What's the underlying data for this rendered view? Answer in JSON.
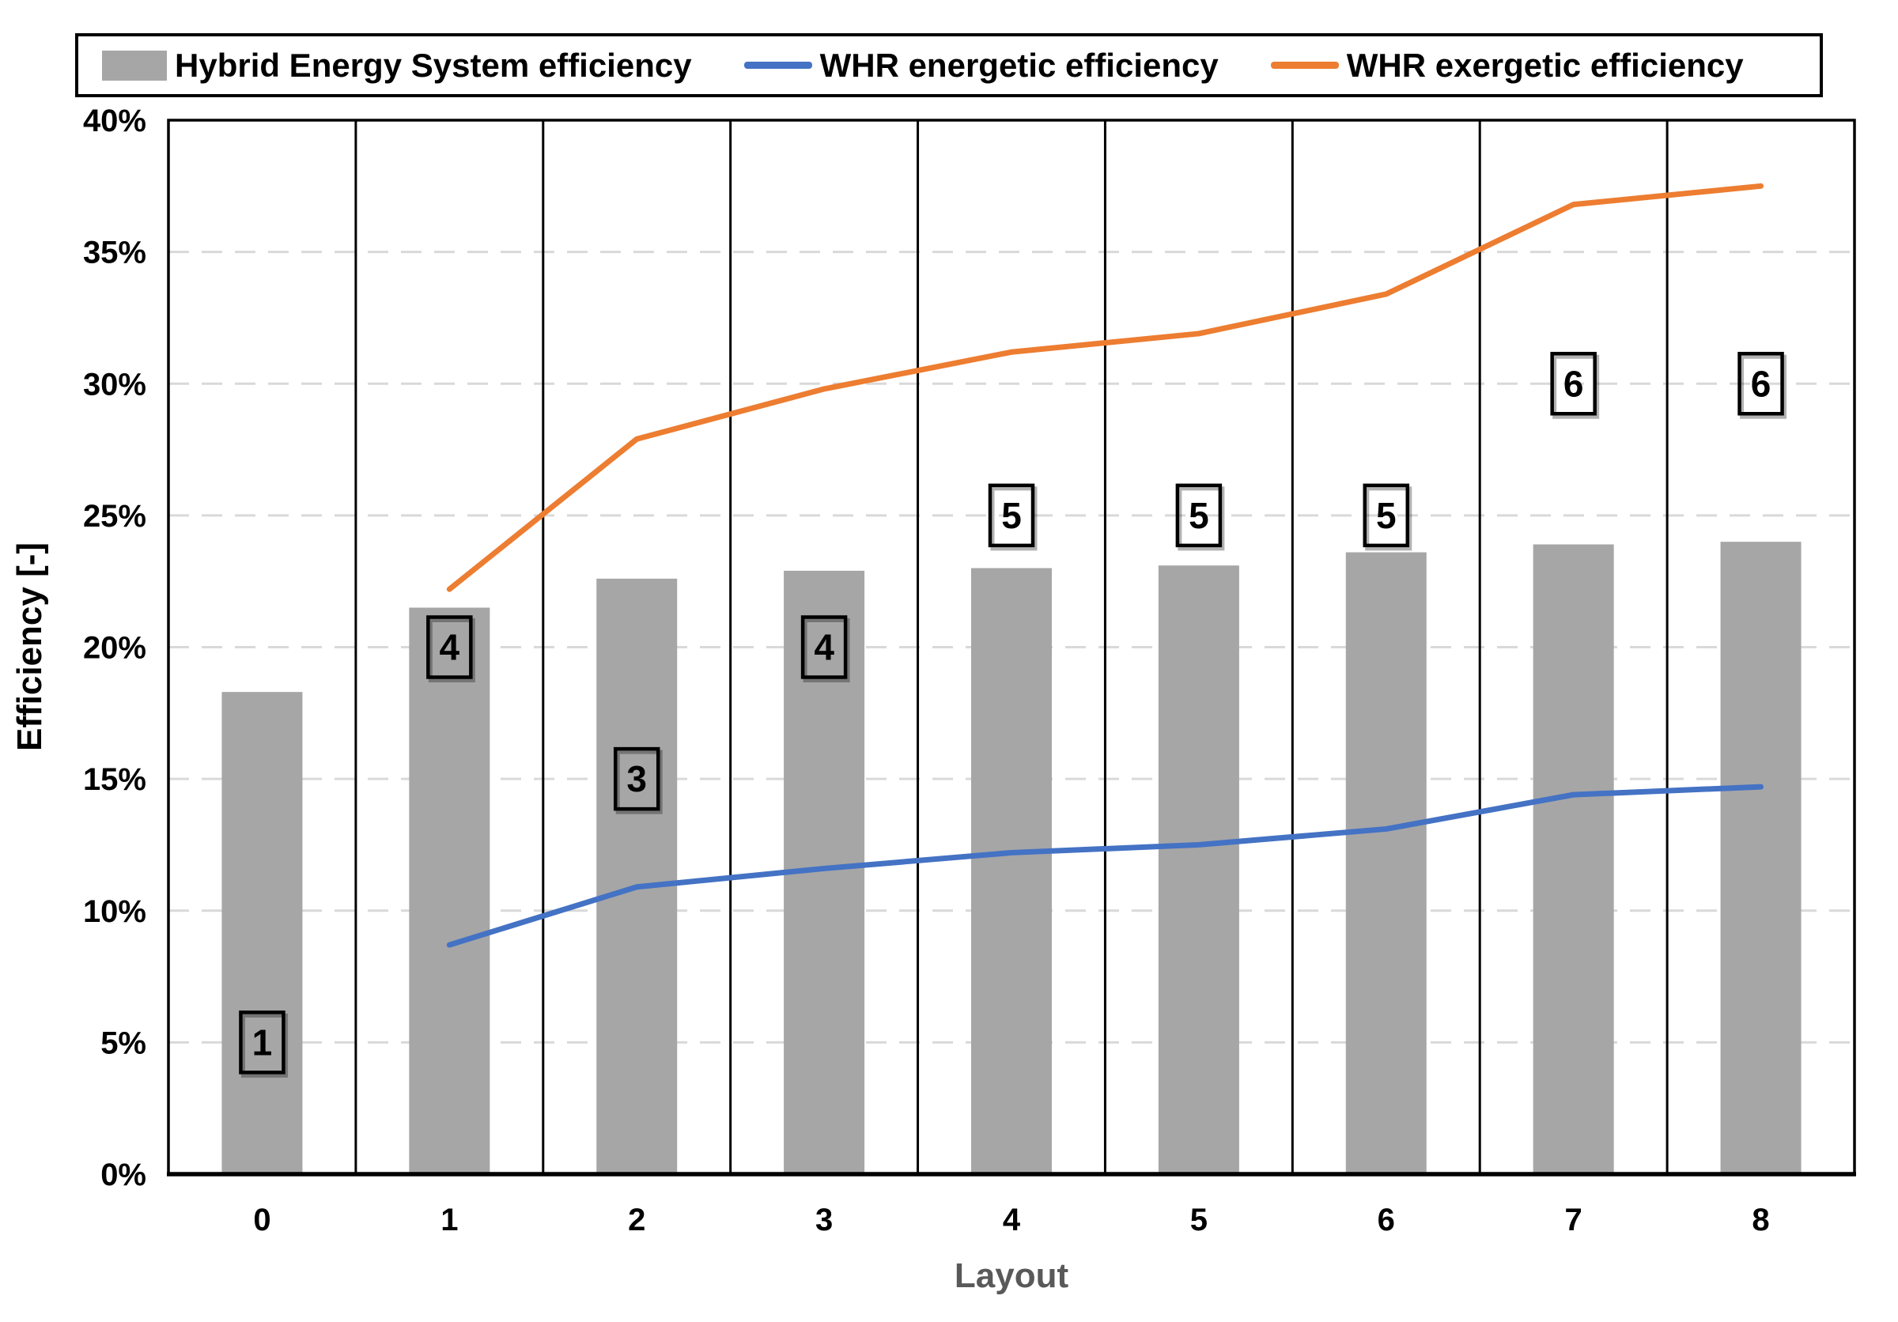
{
  "chart_data": {
    "type": "combo-bar-line",
    "title": "",
    "categories": [
      "0",
      "1",
      "2",
      "3",
      "4",
      "5",
      "6",
      "7",
      "8"
    ],
    "xlabel": "Layout",
    "ylabel": "Efficiency [-]",
    "ylim": [
      0,
      40
    ],
    "ytick_step": 5,
    "ytick_suffix": "%",
    "grid": "horizontal-dashed",
    "gridline_color": "#D9D9D9",
    "separator_color": "#000000",
    "axis_color": "#000000",
    "xlabel_color": "#595959",
    "legend_position": "top",
    "series": [
      {
        "name": "Hybrid Energy System efficiency",
        "type": "bar",
        "color": "#A6A6A6",
        "values": [
          18.3,
          21.5,
          22.6,
          22.9,
          23.0,
          23.1,
          23.6,
          23.9,
          24.0
        ]
      },
      {
        "name": "WHR energetic efficiency",
        "type": "line",
        "color": "#4472C4",
        "values": [
          null,
          8.7,
          10.9,
          11.6,
          12.2,
          12.5,
          13.1,
          14.4,
          14.7
        ]
      },
      {
        "name": "WHR exergetic efficiency",
        "type": "line",
        "color": "#ED7D31",
        "values": [
          null,
          22.2,
          27.9,
          29.8,
          31.2,
          31.9,
          33.4,
          36.8,
          37.5
        ]
      }
    ],
    "annotations": [
      {
        "category": "0",
        "label": "1",
        "value": 5
      },
      {
        "category": "1",
        "label": "4",
        "value": 20
      },
      {
        "category": "2",
        "label": "3",
        "value": 15
      },
      {
        "category": "3",
        "label": "4",
        "value": 20
      },
      {
        "category": "4",
        "label": "5",
        "value": 25
      },
      {
        "category": "5",
        "label": "5",
        "value": 25
      },
      {
        "category": "6",
        "label": "5",
        "value": 25
      },
      {
        "category": "7",
        "label": "6",
        "value": 30
      },
      {
        "category": "8",
        "label": "6",
        "value": 30
      }
    ]
  }
}
